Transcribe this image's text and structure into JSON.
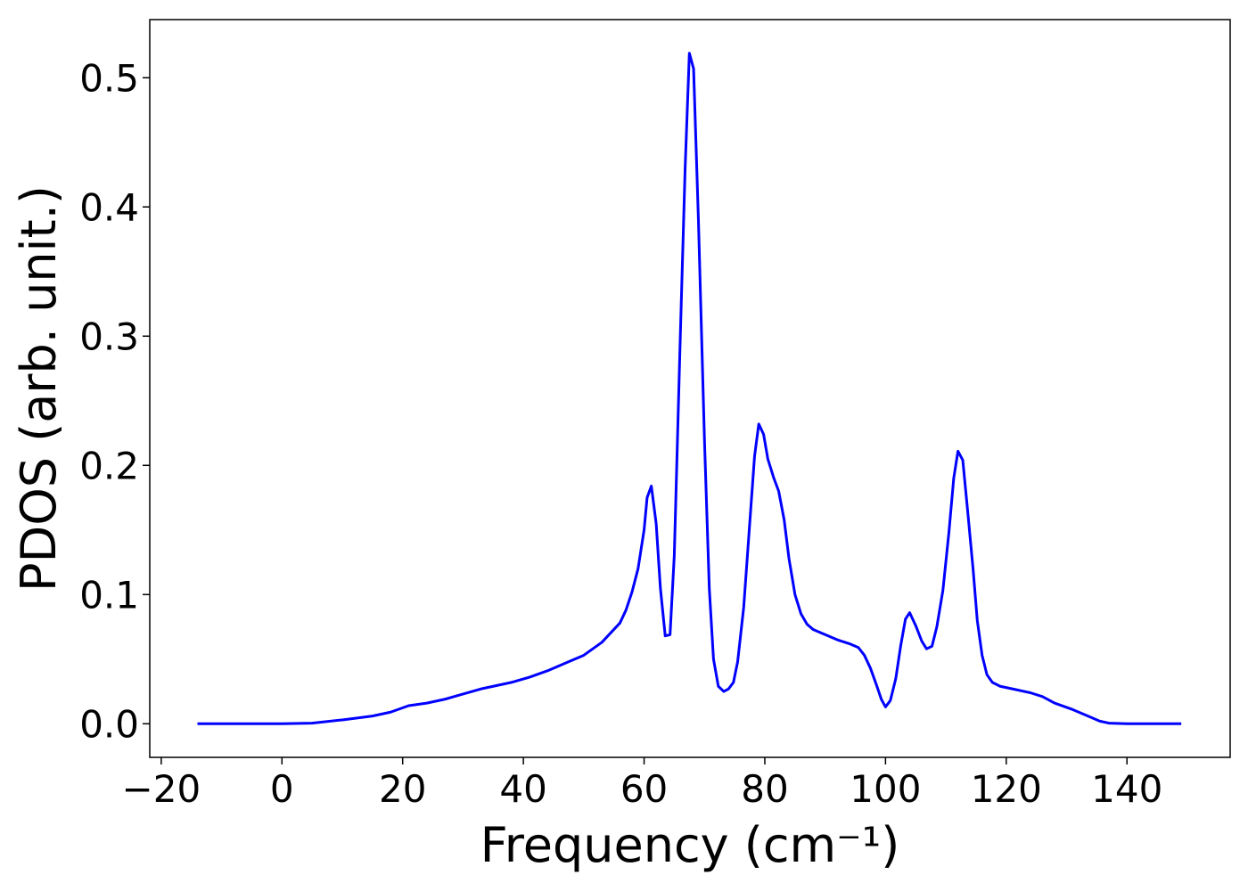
{
  "chart_data": {
    "type": "line",
    "xlabel": "Frequency (cm⁻¹)",
    "ylabel": "PDOS (arb. unit.)",
    "xlim": [
      -21.9,
      157.1
    ],
    "ylim": [
      -0.026,
      0.545
    ],
    "xticks": [
      {
        "value": -20,
        "label": "−20"
      },
      0,
      20,
      40,
      60,
      80,
      100,
      120,
      140
    ],
    "yticks": [
      {
        "value": 0,
        "label": "0.0"
      },
      0.1,
      0.2,
      0.3,
      0.4,
      0.5
    ],
    "series": [
      {
        "color": "#0000ff",
        "x": [
          -14,
          0,
          5,
          10,
          15,
          18,
          21,
          24,
          27,
          30,
          33,
          35,
          38,
          41,
          44,
          47,
          50,
          53,
          56,
          57,
          58,
          59,
          60,
          60.5,
          61.2,
          62,
          62.7,
          63.5,
          64.3,
          65,
          66,
          66.8,
          67.5,
          68.2,
          69,
          70,
          70.8,
          71.5,
          72.3,
          73.2,
          74,
          74.8,
          75.5,
          76.5,
          77.5,
          78.3,
          79,
          79.8,
          80.5,
          81.5,
          82.3,
          83.2,
          84,
          85,
          86,
          87,
          88,
          90,
          92,
          94,
          95.5,
          96.5,
          97.5,
          98.5,
          99.3,
          100,
          100.8,
          101.7,
          102.5,
          103.3,
          104,
          105,
          106,
          106.8,
          107.7,
          108.5,
          109.5,
          110.5,
          111.3,
          112,
          112.8,
          113.6,
          114.5,
          115.2,
          116,
          116.8,
          117.7,
          119,
          121,
          124,
          126,
          128,
          131,
          134,
          135.5,
          137,
          140,
          149
        ],
        "values": [
          0,
          0,
          0.0005,
          0.003,
          0.006,
          0.009,
          0.014,
          0.016,
          0.019,
          0.023,
          0.027,
          0.029,
          0.032,
          0.036,
          0.041,
          0.047,
          0.053,
          0.063,
          0.078,
          0.088,
          0.102,
          0.12,
          0.15,
          0.175,
          0.184,
          0.155,
          0.105,
          0.068,
          0.069,
          0.13,
          0.3,
          0.43,
          0.519,
          0.507,
          0.39,
          0.22,
          0.105,
          0.05,
          0.029,
          0.025,
          0.027,
          0.032,
          0.048,
          0.09,
          0.155,
          0.207,
          0.232,
          0.224,
          0.205,
          0.19,
          0.18,
          0.158,
          0.128,
          0.1,
          0.085,
          0.077,
          0.073,
          0.069,
          0.065,
          0.062,
          0.059,
          0.053,
          0.043,
          0.03,
          0.019,
          0.013,
          0.018,
          0.035,
          0.06,
          0.081,
          0.086,
          0.076,
          0.064,
          0.058,
          0.06,
          0.075,
          0.103,
          0.148,
          0.19,
          0.211,
          0.204,
          0.165,
          0.12,
          0.08,
          0.053,
          0.038,
          0.032,
          0.029,
          0.027,
          0.024,
          0.021,
          0.016,
          0.011,
          0.005,
          0.002,
          0.0005,
          0,
          0
        ]
      }
    ]
  }
}
